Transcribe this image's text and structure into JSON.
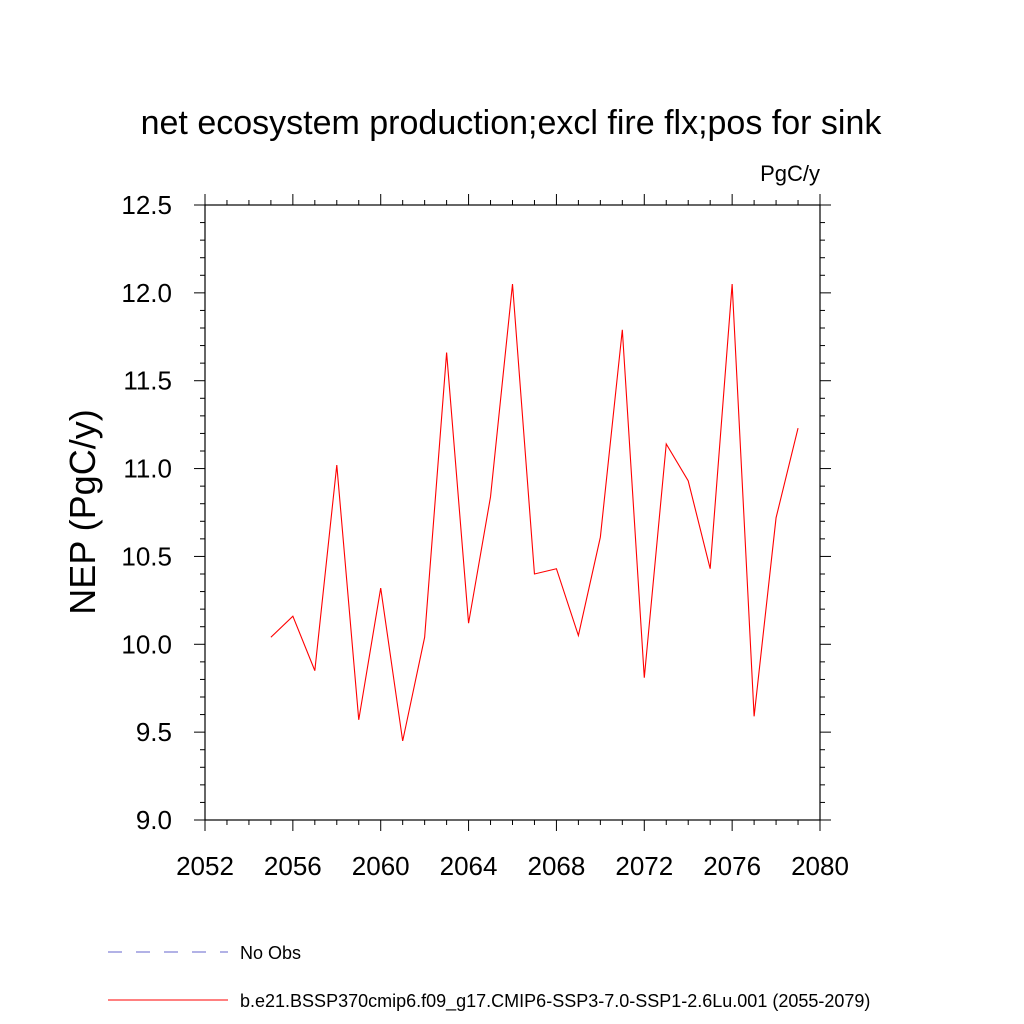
{
  "chart_data": {
    "type": "line",
    "title": "net ecosystem production;excl fire flx;pos for sink",
    "units_label": "PgC/y",
    "ylabel": "NEP  (PgC/y)",
    "xlabel": "",
    "xlim": [
      2052,
      2080
    ],
    "ylim": [
      9.0,
      12.5
    ],
    "xticks": [
      2052,
      2056,
      2060,
      2064,
      2068,
      2072,
      2076,
      2080
    ],
    "xtick_labels": [
      "2052",
      "2056",
      "2060",
      "2064",
      "2068",
      "2072",
      "2076",
      "2080"
    ],
    "xminor_step": 1,
    "yticks": [
      9.0,
      9.5,
      10.0,
      10.5,
      11.0,
      11.5,
      12.0,
      12.5
    ],
    "ytick_labels": [
      "9.0",
      "9.5",
      "10.0",
      "10.5",
      "11.0",
      "11.5",
      "12.0",
      "12.5"
    ],
    "yminor_step": 0.1,
    "grid": false,
    "legend_position": "bottom-left",
    "series": [
      {
        "name": "b.e21.BSSP370cmip6.f09_g17.CMIP6-SSP3-7.0-SSP1-2.6Lu.001 (2055-2079)",
        "color": "#ff0000",
        "style": "solid",
        "x": [
          2055,
          2056,
          2057,
          2058,
          2059,
          2060,
          2061,
          2062,
          2063,
          2064,
          2065,
          2066,
          2067,
          2068,
          2069,
          2070,
          2071,
          2072,
          2073,
          2074,
          2075,
          2076,
          2077,
          2078,
          2079
        ],
        "y": [
          10.04,
          10.16,
          9.85,
          11.02,
          9.57,
          10.32,
          9.45,
          10.04,
          11.66,
          10.12,
          10.84,
          12.05,
          10.4,
          10.43,
          10.05,
          10.61,
          11.79,
          9.81,
          11.14,
          10.93,
          10.43,
          12.05,
          9.59,
          10.72,
          11.23
        ]
      }
    ],
    "legend": [
      {
        "label": "No Obs",
        "color": "#6666cc",
        "style": "dashed"
      },
      {
        "label": "b.e21.BSSP370cmip6.f09_g17.CMIP6-SSP3-7.0-SSP1-2.6Lu.001 (2055-2079)",
        "color": "#ff0000",
        "style": "solid"
      }
    ]
  }
}
